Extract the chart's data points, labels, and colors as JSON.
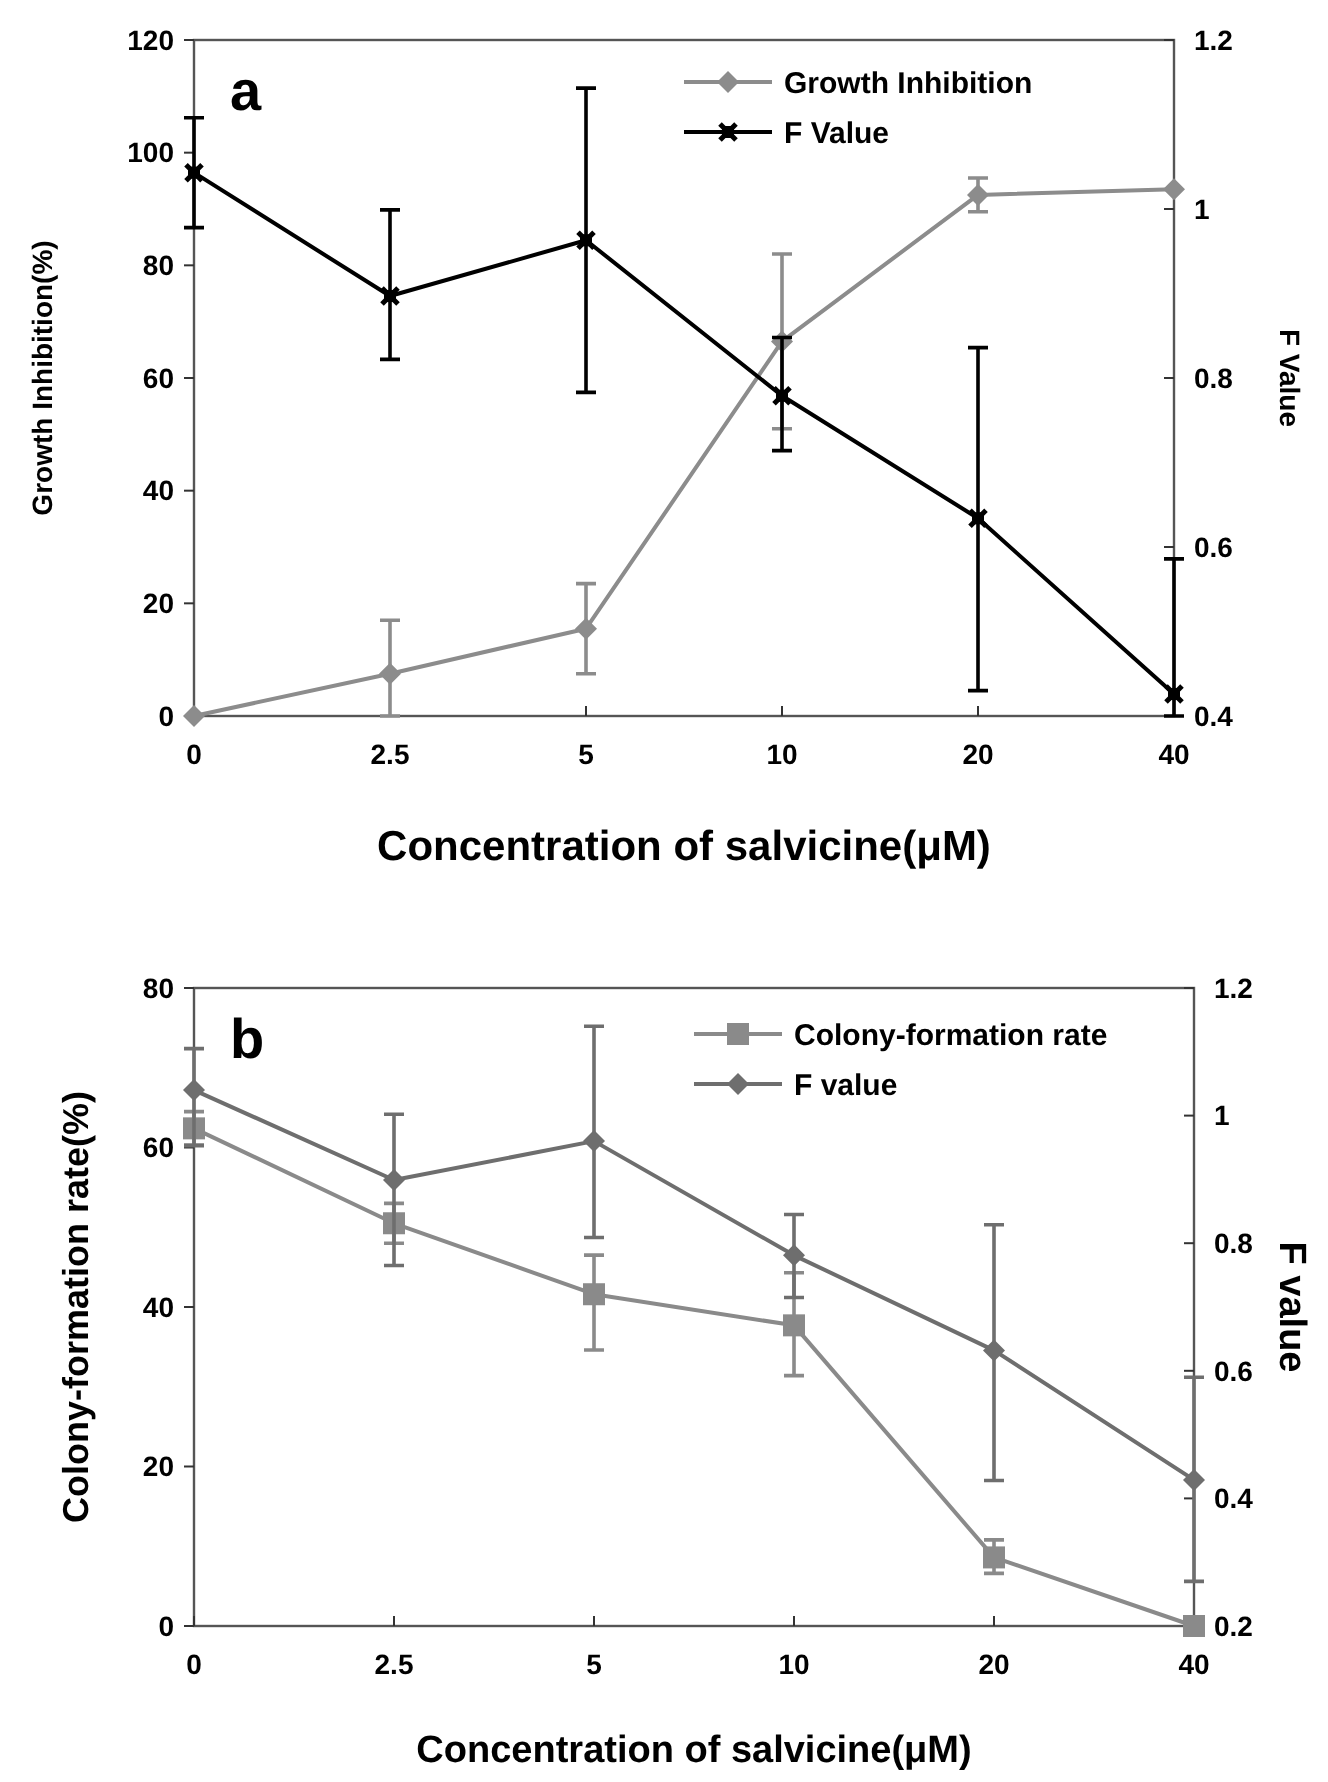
{
  "chart_data": [
    {
      "type": "line",
      "title": "a",
      "xlabel": "Concentration of salvicine(μM)",
      "ylabel": "Growth Inhibition(%)",
      "y2label": "F Value",
      "categories": [
        "0",
        "2.5",
        "5",
        "10",
        "20",
        "40"
      ],
      "ylim": [
        0,
        120
      ],
      "yticks": [
        0,
        20,
        40,
        60,
        80,
        100,
        120
      ],
      "y2lim": [
        0.4,
        1.2
      ],
      "y2ticks": [
        0.4,
        0.6,
        0.8,
        1,
        1.2
      ],
      "legend": "top right",
      "grid": false,
      "series": [
        {
          "name": "Growth Inhibition",
          "color": "#8c8c8c",
          "marker": "diamond",
          "values": [
            0,
            7.5,
            15.5,
            66.5,
            92.5,
            93.5
          ],
          "errors": [
            null,
            [
              0,
              17
            ],
            [
              7.5,
              23.5
            ],
            [
              51,
              82
            ],
            [
              89.5,
              95.5
            ],
            null
          ]
        },
        {
          "name": "F Value",
          "color": "#000000",
          "marker": "cross",
          "axis": "y2",
          "values": [
            1.043,
            0.897,
            0.963,
            0.779,
            0.634,
            0.426
          ],
          "errors": [
            [
              0.978,
              1.108
            ],
            [
              0.822,
              0.999
            ],
            [
              0.783,
              1.143
            ],
            [
              0.714,
              0.848
            ],
            [
              0.43,
              0.836
            ],
            [
              0.4,
              0.586
            ]
          ]
        }
      ]
    },
    {
      "type": "line",
      "title": "b",
      "xlabel": "Concentration of salvicine(μM)",
      "ylabel": "Colony-formation rate(%)",
      "y2label": "F value",
      "categories": [
        "0",
        "2.5",
        "5",
        "10",
        "20",
        "40"
      ],
      "ylim": [
        0,
        80
      ],
      "yticks": [
        0,
        20,
        40,
        60,
        80
      ],
      "y2lim": [
        0.2,
        1.2
      ],
      "y2ticks": [
        0.2,
        0.4,
        0.6,
        0.8,
        1,
        1.2
      ],
      "legend": "top right",
      "grid": false,
      "series": [
        {
          "name": "Colony-formation rate",
          "color": "#8a8a8a",
          "marker": "square",
          "values": [
            62.4,
            50.5,
            41.6,
            37.7,
            8.6,
            0
          ],
          "errors": [
            [
              60.3,
              64.5
            ],
            [
              48,
              53
            ],
            [
              34.6,
              46.5
            ],
            [
              31.4,
              44.3
            ],
            [
              6.6,
              10.8
            ],
            null
          ]
        },
        {
          "name": "F value",
          "color": "#6e6e6e",
          "marker": "diamond",
          "axis": "y2",
          "values": [
            1.04,
            0.899,
            0.96,
            0.781,
            0.632,
            0.429
          ],
          "errors": [
            [
              0.953,
              1.105
            ],
            [
              0.765,
              1.002
            ],
            [
              0.809,
              1.14
            ],
            [
              0.715,
              0.845
            ],
            [
              0.428,
              0.829
            ],
            [
              0.27,
              0.59
            ]
          ]
        }
      ]
    }
  ]
}
